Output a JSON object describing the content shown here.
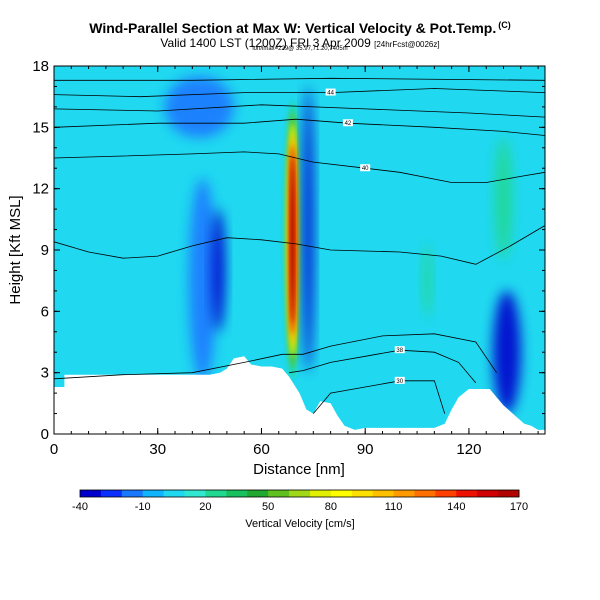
{
  "header": {
    "title": "Wind-Parallel Section at Max W: Vertical Velocity & Pot.Temp.",
    "title_mark": "(C)",
    "subtitle": "Valid 1400 LST (1200Z) FRI 3 Apr 2009",
    "subtitle_small": "[24hrFcst@0026z]",
    "info_line": "lon/lmax=229@ 35.97,71.20,7405m"
  },
  "chart_data": {
    "type": "heatmap",
    "title": "Wind-Parallel Section at Max W: Vertical Velocity & Pot.Temp.",
    "xlabel": "Distance [nm]",
    "ylabel": "Height [Kft MSL]",
    "xlim": [
      0,
      142
    ],
    "ylim": [
      0,
      18
    ],
    "x_ticks": [
      0,
      30,
      60,
      90,
      120
    ],
    "y_ticks": [
      0,
      3,
      6,
      9,
      12,
      15,
      18
    ],
    "background_value": 5,
    "terrain": [
      {
        "x": 0,
        "h": 2.3
      },
      {
        "x": 3,
        "h": 2.3
      },
      {
        "x": 3,
        "h": 2.9
      },
      {
        "x": 30,
        "h": 2.9
      },
      {
        "x": 45,
        "h": 2.9
      },
      {
        "x": 48,
        "h": 3.0
      },
      {
        "x": 50,
        "h": 3.2
      },
      {
        "x": 52,
        "h": 3.7
      },
      {
        "x": 55,
        "h": 3.8
      },
      {
        "x": 57,
        "h": 3.4
      },
      {
        "x": 60,
        "h": 3.3
      },
      {
        "x": 63,
        "h": 3.3
      },
      {
        "x": 66,
        "h": 3.2
      },
      {
        "x": 68,
        "h": 2.8
      },
      {
        "x": 71,
        "h": 2.0
      },
      {
        "x": 73,
        "h": 1.2
      },
      {
        "x": 75,
        "h": 1.0
      },
      {
        "x": 77,
        "h": 1.6
      },
      {
        "x": 80,
        "h": 1.5
      },
      {
        "x": 82,
        "h": 0.9
      },
      {
        "x": 84,
        "h": 0.4
      },
      {
        "x": 87,
        "h": 0.2
      },
      {
        "x": 90,
        "h": 0.3
      },
      {
        "x": 100,
        "h": 0.3
      },
      {
        "x": 110,
        "h": 0.3
      },
      {
        "x": 113,
        "h": 0.5
      },
      {
        "x": 115,
        "h": 1.2
      },
      {
        "x": 117,
        "h": 1.8
      },
      {
        "x": 120,
        "h": 2.2
      },
      {
        "x": 126,
        "h": 2.2
      },
      {
        "x": 128,
        "h": 1.8
      },
      {
        "x": 130,
        "h": 1.4
      },
      {
        "x": 132,
        "h": 1.1
      },
      {
        "x": 134,
        "h": 0.8
      },
      {
        "x": 136,
        "h": 0.5
      },
      {
        "x": 138,
        "h": 0.4
      },
      {
        "x": 140,
        "h": 0.2
      },
      {
        "x": 142,
        "h": 0.2
      }
    ],
    "features": [
      {
        "kind": "updraft",
        "x": 69,
        "y": 9.5,
        "rx": 2.1,
        "ry": 6.8,
        "value": 170
      },
      {
        "kind": "downdraft",
        "x": 73.5,
        "y": 10.0,
        "rx": 1.6,
        "ry": 7.0,
        "value": -40
      },
      {
        "kind": "downdraft",
        "x": 43,
        "y": 7.5,
        "rx": 4.0,
        "ry": 5.0,
        "value": -20
      },
      {
        "kind": "downdraft",
        "x": 47.5,
        "y": 8.0,
        "rx": 2.0,
        "ry": 3.0,
        "value": -40
      },
      {
        "kind": "downdraft",
        "x": 131,
        "y": 4.0,
        "rx": 4.0,
        "ry": 3.0,
        "value": -40
      },
      {
        "kind": "downdraft",
        "x": 42,
        "y": 16.0,
        "rx": 10.0,
        "ry": 1.5,
        "value": -15
      },
      {
        "kind": "updraft",
        "x": 130,
        "y": 11.5,
        "rx": 2.5,
        "ry": 3.0,
        "value": 20
      },
      {
        "kind": "updraft",
        "x": 108,
        "y": 7.5,
        "rx": 1.3,
        "ry": 1.8,
        "value": 20
      }
    ],
    "pot_temp_contours": [
      {
        "label": "30",
        "levels": [
          {
            "x": 75,
            "h": 1.0
          },
          {
            "x": 80,
            "h": 2.0
          },
          {
            "x": 90,
            "h": 2.3
          },
          {
            "x": 100,
            "h": 2.6
          },
          {
            "x": 110,
            "h": 2.6
          },
          {
            "x": 113,
            "h": 1.0
          }
        ]
      },
      {
        "label": "38",
        "levels": [
          {
            "x": 68,
            "h": 3.0
          },
          {
            "x": 72,
            "h": 3.1
          },
          {
            "x": 80,
            "h": 3.5
          },
          {
            "x": 90,
            "h": 3.8
          },
          {
            "x": 100,
            "h": 4.1
          },
          {
            "x": 110,
            "h": 4.0
          },
          {
            "x": 117,
            "h": 3.5
          },
          {
            "x": 122,
            "h": 2.5
          }
        ]
      },
      {
        "label": "",
        "levels": [
          {
            "x": 0,
            "h": 2.7
          },
          {
            "x": 20,
            "h": 2.9
          },
          {
            "x": 40,
            "h": 3.0
          },
          {
            "x": 55,
            "h": 3.5
          },
          {
            "x": 66,
            "h": 3.9
          },
          {
            "x": 72,
            "h": 3.9
          },
          {
            "x": 80,
            "h": 4.3
          },
          {
            "x": 95,
            "h": 4.8
          },
          {
            "x": 110,
            "h": 4.9
          },
          {
            "x": 122,
            "h": 4.5
          },
          {
            "x": 128,
            "h": 3.0
          }
        ]
      },
      {
        "label": "",
        "levels": [
          {
            "x": 0,
            "h": 9.4
          },
          {
            "x": 10,
            "h": 8.9
          },
          {
            "x": 20,
            "h": 8.6
          },
          {
            "x": 30,
            "h": 8.7
          },
          {
            "x": 40,
            "h": 9.2
          },
          {
            "x": 50,
            "h": 9.6
          },
          {
            "x": 60,
            "h": 9.5
          },
          {
            "x": 70,
            "h": 9.3
          },
          {
            "x": 80,
            "h": 9.0
          },
          {
            "x": 100,
            "h": 8.9
          },
          {
            "x": 112,
            "h": 8.7
          },
          {
            "x": 122,
            "h": 8.3
          },
          {
            "x": 132,
            "h": 9.2
          },
          {
            "x": 142,
            "h": 10.2
          }
        ]
      },
      {
        "label": "40",
        "levels": [
          {
            "x": 0,
            "h": 13.5
          },
          {
            "x": 20,
            "h": 13.6
          },
          {
            "x": 40,
            "h": 13.7
          },
          {
            "x": 55,
            "h": 13.8
          },
          {
            "x": 65,
            "h": 13.7
          },
          {
            "x": 75,
            "h": 13.3
          },
          {
            "x": 90,
            "h": 13.0
          },
          {
            "x": 100,
            "h": 12.8
          },
          {
            "x": 115,
            "h": 12.3
          },
          {
            "x": 125,
            "h": 12.3
          },
          {
            "x": 135,
            "h": 12.6
          },
          {
            "x": 142,
            "h": 12.8
          }
        ]
      },
      {
        "label": "42",
        "levels": [
          {
            "x": 0,
            "h": 15.0
          },
          {
            "x": 30,
            "h": 15.2
          },
          {
            "x": 55,
            "h": 15.2
          },
          {
            "x": 70,
            "h": 15.4
          },
          {
            "x": 85,
            "h": 15.2
          },
          {
            "x": 110,
            "h": 15.0
          },
          {
            "x": 130,
            "h": 14.8
          },
          {
            "x": 142,
            "h": 14.6
          }
        ]
      },
      {
        "label": "",
        "levels": [
          {
            "x": 0,
            "h": 15.9
          },
          {
            "x": 30,
            "h": 15.8
          },
          {
            "x": 60,
            "h": 16.1
          },
          {
            "x": 90,
            "h": 15.9
          },
          {
            "x": 120,
            "h": 15.7
          },
          {
            "x": 142,
            "h": 15.5
          }
        ]
      },
      {
        "label": "44",
        "levels": [
          {
            "x": 0,
            "h": 16.6
          },
          {
            "x": 25,
            "h": 16.5
          },
          {
            "x": 55,
            "h": 16.7
          },
          {
            "x": 80,
            "h": 16.7
          },
          {
            "x": 110,
            "h": 16.9
          },
          {
            "x": 142,
            "h": 16.7
          }
        ]
      },
      {
        "label": "",
        "levels": [
          {
            "x": 0,
            "h": 17.3
          },
          {
            "x": 40,
            "h": 17.3
          },
          {
            "x": 80,
            "h": 17.4
          },
          {
            "x": 142,
            "h": 17.3
          }
        ]
      }
    ],
    "colorbar": {
      "title": "Vertical Velocity [cm/s]",
      "ticks": [
        "-40",
        "-10",
        "20",
        "50",
        "80",
        "110",
        "140",
        "170"
      ],
      "tick_values": [
        -40,
        -10,
        20,
        50,
        80,
        110,
        140,
        170
      ],
      "stops": [
        {
          "v": -40,
          "color": "#0000cc"
        },
        {
          "v": -30,
          "color": "#0a30ff"
        },
        {
          "v": -20,
          "color": "#1a78ff"
        },
        {
          "v": -10,
          "color": "#10b4ff"
        },
        {
          "v": 0,
          "color": "#20d8f0"
        },
        {
          "v": 10,
          "color": "#30e8d0"
        },
        {
          "v": 20,
          "color": "#20d890"
        },
        {
          "v": 30,
          "color": "#18c060"
        },
        {
          "v": 40,
          "color": "#20a830"
        },
        {
          "v": 50,
          "color": "#60c020"
        },
        {
          "v": 60,
          "color": "#a0d818"
        },
        {
          "v": 70,
          "color": "#e0f000"
        },
        {
          "v": 80,
          "color": "#ffff00"
        },
        {
          "v": 90,
          "color": "#ffe000"
        },
        {
          "v": 100,
          "color": "#ffc000"
        },
        {
          "v": 110,
          "color": "#ff9a00"
        },
        {
          "v": 120,
          "color": "#ff7000"
        },
        {
          "v": 130,
          "color": "#ff4000"
        },
        {
          "v": 140,
          "color": "#ee1000"
        },
        {
          "v": 150,
          "color": "#d00000"
        },
        {
          "v": 160,
          "color": "#b00000"
        },
        {
          "v": 170,
          "color": "#900000"
        }
      ]
    }
  }
}
